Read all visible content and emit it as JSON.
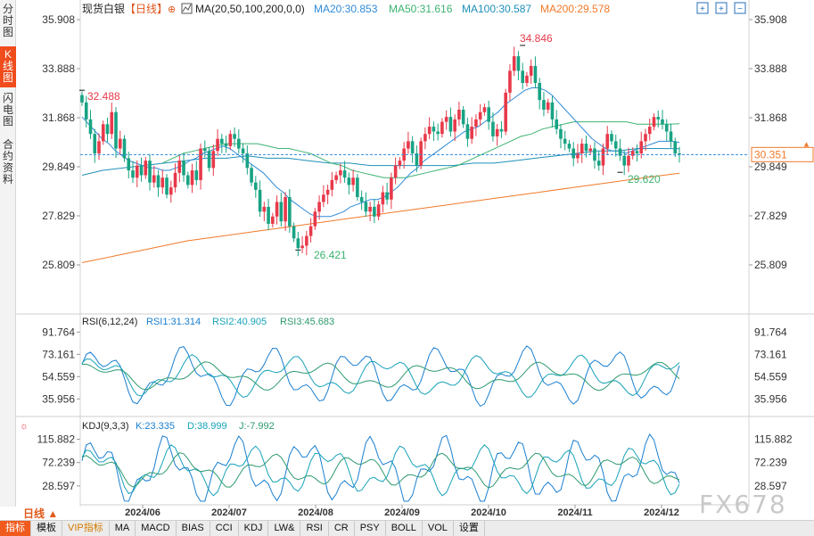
{
  "sidebar": {
    "tabs": [
      {
        "label": "分时图",
        "active": false
      },
      {
        "label": "K线图",
        "active": true
      },
      {
        "label": "闪电图",
        "active": false
      },
      {
        "label": "合约资料",
        "active": false
      }
    ]
  },
  "header": {
    "symbol": "现货白银",
    "period": "【日线】",
    "ma_label": "MA(20,50,100,200,0,0)",
    "ma20": "MA20:30.853",
    "ma50": "MA50:31.616",
    "ma100": "MA100:30.587",
    "ma200": "MA200:29.578"
  },
  "rsi": {
    "label": "RSI(6,12,24)",
    "rsi1": "RSI1:31.314",
    "rsi2": "RSI2:40.905",
    "rsi3": "RSI3:45.683",
    "ticks": [
      "91.764",
      "73.161",
      "54.559",
      "35.956"
    ]
  },
  "kdj": {
    "label": "KDJ(9,3,3)",
    "k": "K:23.335",
    "d": "D:38.999",
    "j": "J:-7.992",
    "ticks": [
      "115.882",
      "72.239",
      "28.597"
    ]
  },
  "price_ticks": [
    "35.908",
    "33.888",
    "31.868",
    "29.849",
    "27.829",
    "25.809"
  ],
  "current_price": "30.351",
  "annotations": {
    "high_start": "32.488",
    "high": "34.846",
    "low": "26.421",
    "low2": "29.620"
  },
  "xticks": [
    "2024/06",
    "2024/07",
    "2024/08",
    "2024/09",
    "2024/10",
    "2024/11",
    "2024/12"
  ],
  "period_selector": "日线",
  "bottom_tabs": [
    "指标",
    "模板",
    "VIP指标",
    "MA",
    "MACD",
    "BIAS",
    "CCI",
    "KDJ",
    "LW&",
    "RSI",
    "CR",
    "PSY",
    "BOLL",
    "VOL",
    "设置"
  ],
  "watermark": "FX678",
  "colors": {
    "up": "#e8394a",
    "down": "#18a383",
    "ma20": "#2f8bd8",
    "ma50": "#3cb371",
    "ma100": "#1e90b8",
    "ma200": "#f07a2a",
    "rsi1": "#1a7fd0",
    "rsi2": "#17a2b8",
    "rsi3": "#2e9a6e"
  },
  "chart_data": {
    "type": "candlestick",
    "price_axis": {
      "min": 25.809,
      "max": 35.908
    },
    "closes": [
      32.5,
      31.8,
      31.2,
      30.4,
      30.9,
      31.6,
      31.2,
      32.1,
      30.6,
      31.0,
      30.2,
      29.7,
      29.4,
      29.9,
      29.5,
      30.1,
      29.2,
      29.5,
      29.0,
      29.4,
      28.7,
      29.0,
      29.6,
      30.1,
      29.5,
      29.1,
      29.7,
      29.3,
      30.6,
      30.5,
      29.8,
      30.5,
      31.0,
      30.8,
      30.7,
      31.2,
      31.0,
      30.6,
      30.4,
      29.8,
      29.2,
      28.9,
      28.0,
      28.2,
      27.5,
      27.8,
      28.4,
      27.6,
      28.6,
      27.4,
      26.9,
      26.5,
      26.6,
      27.0,
      27.4,
      28.0,
      28.4,
      28.7,
      28.9,
      29.3,
      29.5,
      29.7,
      29.4,
      29.1,
      29.4,
      28.6,
      28.4,
      28.0,
      28.2,
      27.8,
      28.3,
      28.8,
      28.5,
      29.4,
      29.9,
      30.1,
      30.6,
      30.9,
      30.4,
      29.9,
      30.9,
      31.2,
      31.5,
      31.3,
      31.2,
      31.7,
      31.9,
      31.3,
      31.8,
      32.2,
      31.6,
      31.0,
      31.5,
      31.8,
      32.1,
      32.3,
      31.7,
      31.1,
      31.4,
      31.3,
      32.9,
      33.8,
      34.4,
      33.8,
      33.3,
      33.6,
      34.0,
      33.3,
      32.6,
      32.2,
      32.5,
      31.8,
      31.4,
      31.0,
      30.8,
      30.6,
      30.2,
      30.4,
      30.8,
      30.5,
      30.6,
      30.1,
      29.9,
      30.6,
      31.2,
      30.9,
      30.6,
      30.3,
      29.9,
      30.3,
      30.5,
      30.4,
      30.9,
      31.2,
      31.5,
      31.9,
      31.8,
      31.6,
      31.3,
      30.9,
      30.4,
      30.351
    ],
    "ma20": [
      31.9,
      31.6,
      31.3,
      31.0,
      30.8,
      30.5,
      30.3,
      30.1,
      30.0,
      29.9,
      29.8,
      29.8,
      29.7,
      29.7,
      29.8,
      29.9,
      30.1,
      30.2,
      30.4,
      30.5,
      30.6,
      30.7,
      30.6,
      30.4,
      30.2,
      30.0,
      29.8,
      29.6,
      29.3,
      29.0,
      28.8,
      28.5,
      28.3,
      28.1,
      27.9,
      27.8,
      27.8,
      27.8,
      27.9,
      28.0,
      28.2,
      28.3,
      28.4,
      28.5,
      28.5,
      28.6,
      28.8,
      29.0,
      29.3,
      29.6,
      29.8,
      30.1,
      30.3,
      30.5,
      30.7,
      30.9,
      31.1,
      31.3,
      31.4,
      31.5,
      31.7,
      31.9,
      32.1,
      32.4,
      32.6,
      32.8,
      33.0,
      33.1,
      33.1,
      33.0,
      32.8,
      32.5,
      32.2,
      31.9,
      31.6,
      31.3,
      31.0,
      30.8,
      30.6,
      30.5,
      30.5,
      30.4,
      30.5,
      30.6,
      30.7,
      30.8,
      30.9,
      30.9,
      30.9,
      30.85
    ],
    "ma50": [
      30.0,
      30.2,
      30.4,
      30.5,
      30.6,
      30.7,
      30.8,
      30.8,
      30.8,
      30.8,
      30.7,
      30.6,
      30.6,
      30.5,
      30.4,
      30.2,
      30.0,
      29.9,
      29.7,
      29.6,
      29.5,
      29.4,
      29.4,
      29.4,
      29.5,
      29.6,
      29.7,
      29.8,
      29.9,
      30.1,
      30.3,
      30.5,
      30.7,
      30.9,
      31.1,
      31.2,
      31.4,
      31.5,
      31.6,
      31.7,
      31.7,
      31.7,
      31.7,
      31.7,
      31.7,
      31.6,
      31.6,
      31.6,
      31.6,
      31.62
    ],
    "ma100": [
      29.5,
      29.7,
      29.8,
      29.9,
      30.0,
      30.1,
      30.2,
      30.2,
      30.3,
      30.2,
      30.2,
      30.1,
      30.0,
      30.0,
      29.9,
      29.9,
      29.9,
      29.9,
      29.9,
      30.0,
      30.0,
      30.1,
      30.2,
      30.3,
      30.4,
      30.5,
      30.5,
      30.6,
      30.6,
      30.59
    ],
    "ma200": [
      25.9,
      26.2,
      26.5,
      26.8,
      27.0,
      27.2,
      27.4,
      27.6,
      27.8,
      28.0,
      28.2,
      28.4,
      28.6,
      28.8,
      29.0,
      29.2,
      29.4,
      29.58
    ],
    "x_labels": [
      "2024/06",
      "2024/07",
      "2024/08",
      "2024/09",
      "2024/10",
      "2024/11",
      "2024/12"
    ]
  }
}
